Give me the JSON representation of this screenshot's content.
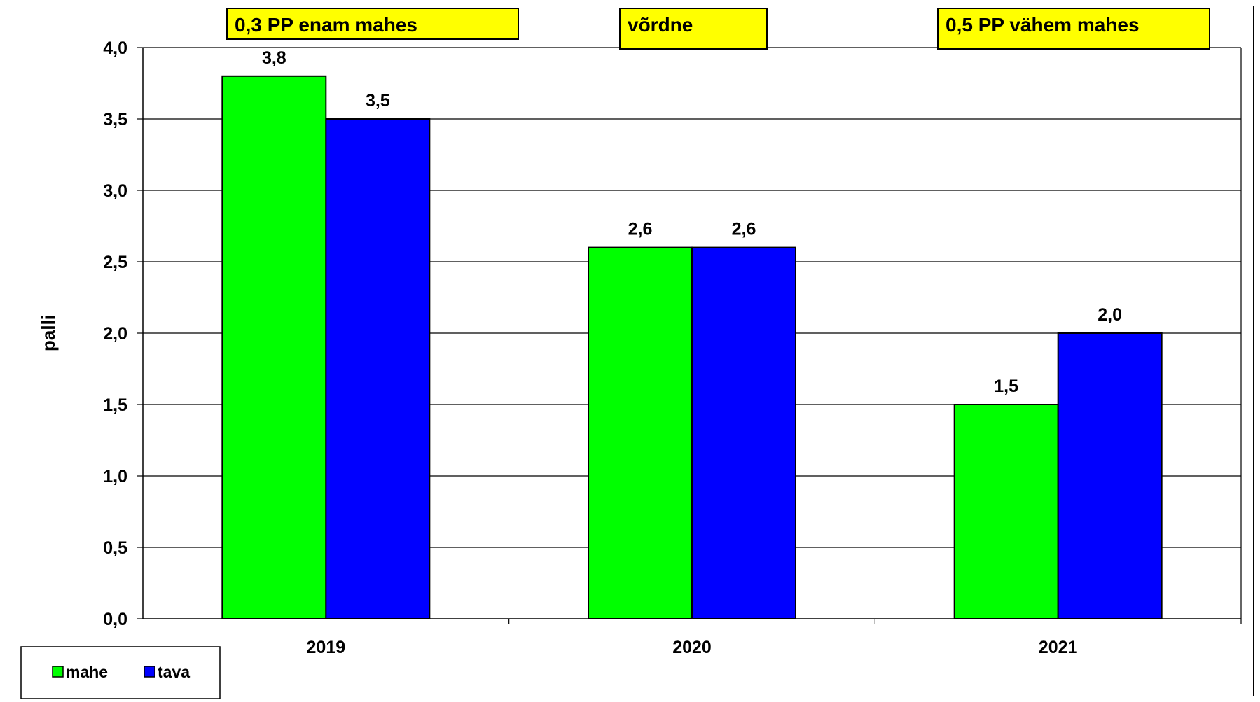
{
  "chart_data": {
    "type": "bar",
    "categories": [
      "2019",
      "2020",
      "2021"
    ],
    "series": [
      {
        "name": "mahe",
        "color": "#00ff00",
        "values": [
          3.8,
          2.6,
          1.5
        ],
        "labels": [
          "3,8",
          "2,6",
          "1,5"
        ]
      },
      {
        "name": "tava",
        "color": "#0000ff",
        "values": [
          3.5,
          2.6,
          2.0
        ],
        "labels": [
          "3,5",
          "2,6",
          "2,0"
        ]
      }
    ],
    "ylabel": "palli",
    "ylim": [
      0,
      4
    ],
    "yticks": [
      "0,0",
      "0,5",
      "1,0",
      "1,5",
      "2,0",
      "2,5",
      "3,0",
      "3,5",
      "4,0"
    ],
    "grid": true,
    "legend": "bottom-left",
    "annotations": [
      "0,3 PP enam mahes",
      "võrdne",
      "0,5 PP vähem mahes"
    ],
    "annotation_color": "#ffff00"
  }
}
